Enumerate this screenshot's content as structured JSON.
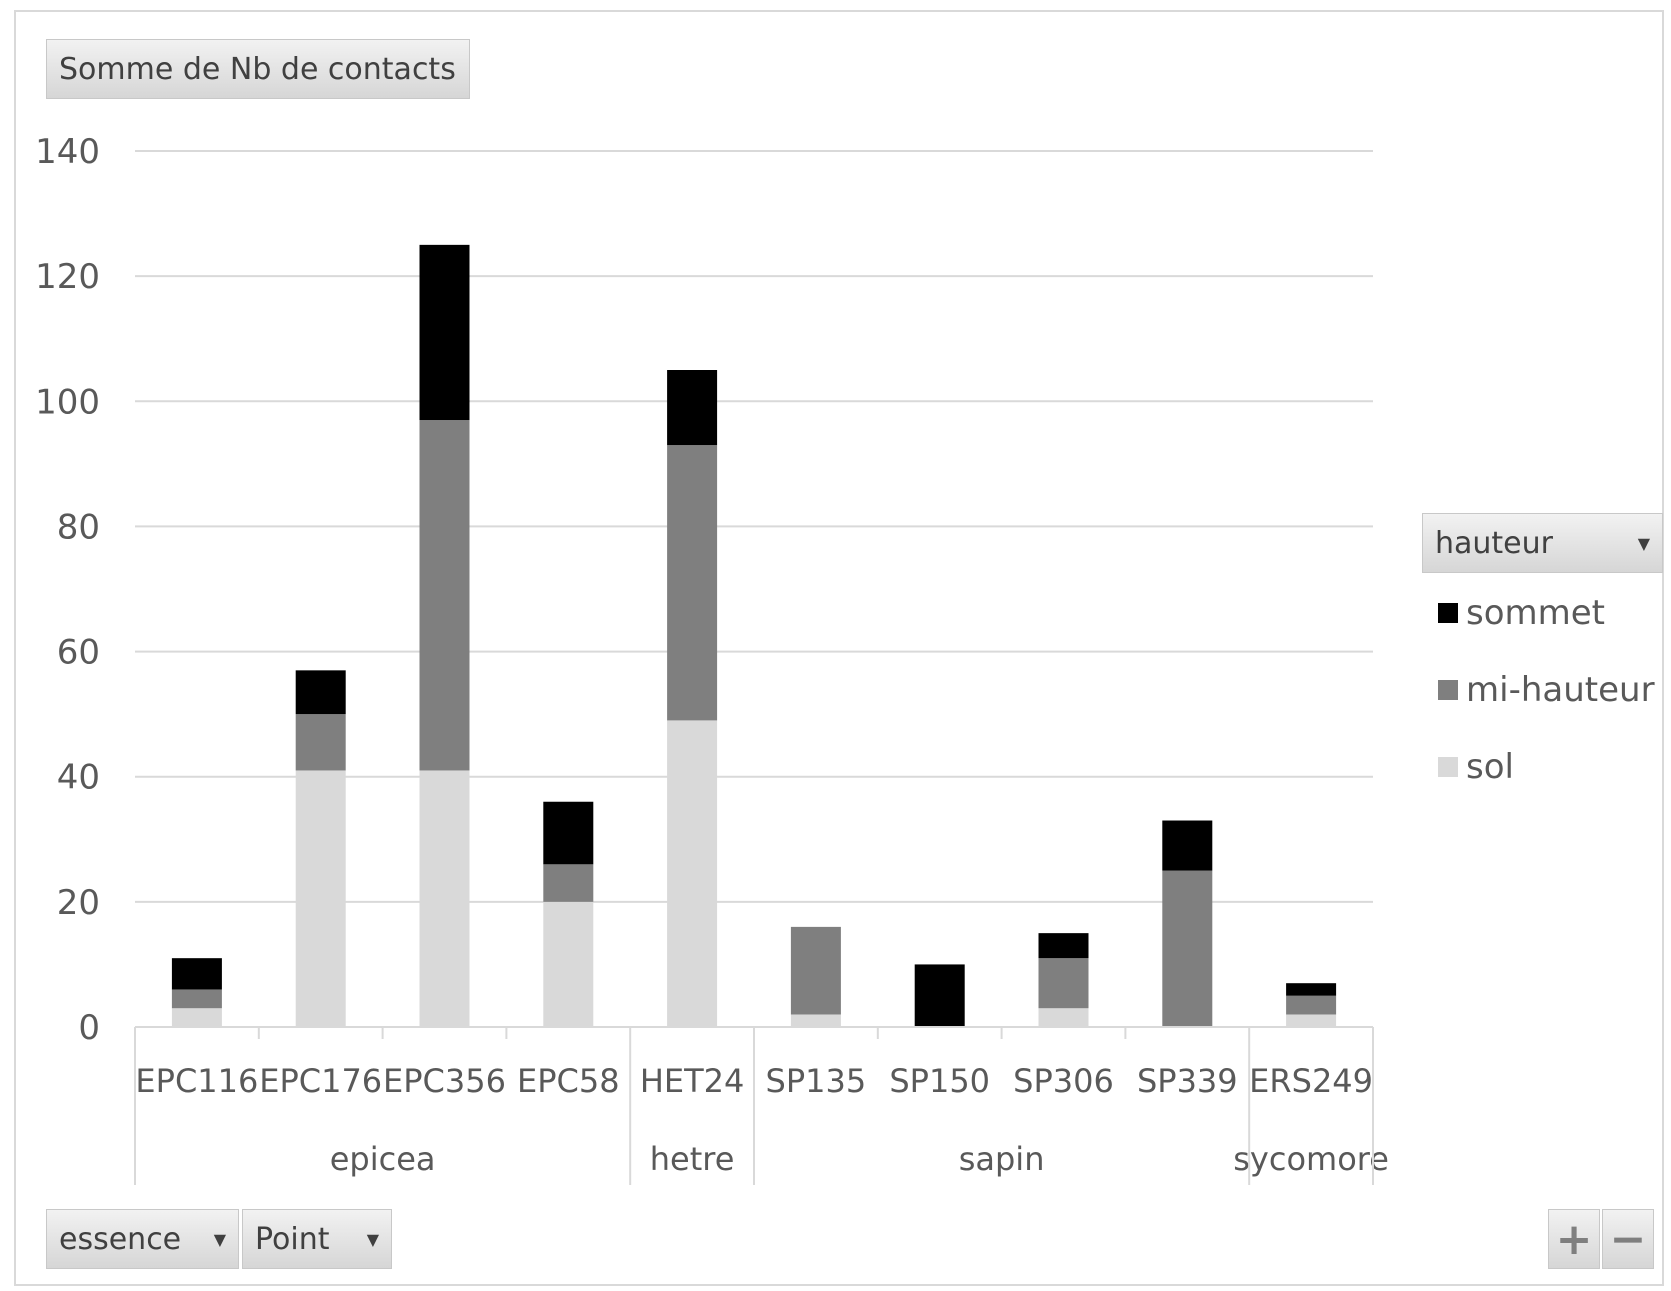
{
  "pivot": {
    "value_field": "Somme de Nb de contacts",
    "legend_field": "hauteur",
    "row_fields": [
      "essence",
      "Point"
    ],
    "plus_label": "+",
    "minus_label": "−"
  },
  "icons": {
    "dropdown": "dropdown-arrow-icon"
  },
  "chart_data": {
    "type": "bar",
    "stacked": true,
    "title": "",
    "xlabel": "",
    "ylabel": "",
    "ylim": [
      0,
      140
    ],
    "yticks": [
      0,
      20,
      40,
      60,
      80,
      100,
      120,
      140
    ],
    "grid": true,
    "legend_position": "right",
    "categories": [
      "EPC116",
      "EPC176",
      "EPC356",
      "EPC58",
      "HET24",
      "SP135",
      "SP150",
      "SP306",
      "SP339",
      "ERS249"
    ],
    "groups": [
      {
        "name": "epicea",
        "categories": [
          "EPC116",
          "EPC176",
          "EPC356",
          "EPC58"
        ]
      },
      {
        "name": "hetre",
        "categories": [
          "HET24"
        ]
      },
      {
        "name": "sapin",
        "categories": [
          "SP135",
          "SP150",
          "SP306",
          "SP339"
        ]
      },
      {
        "name": "sycomore",
        "categories": [
          "ERS249"
        ]
      }
    ],
    "series": [
      {
        "name": "sol",
        "color": "#d9d9d9",
        "values": [
          3,
          41,
          41,
          20,
          49,
          2,
          0,
          3,
          0,
          2
        ]
      },
      {
        "name": "mi-hauteur",
        "color": "#7f7f7f",
        "values": [
          3,
          9,
          56,
          6,
          44,
          14,
          0,
          8,
          25,
          3
        ]
      },
      {
        "name": "sommet",
        "color": "#000000",
        "values": [
          5,
          7,
          28,
          10,
          12,
          0,
          10,
          4,
          8,
          2
        ]
      }
    ],
    "legend_order": [
      "sommet",
      "mi-hauteur",
      "sol"
    ]
  }
}
